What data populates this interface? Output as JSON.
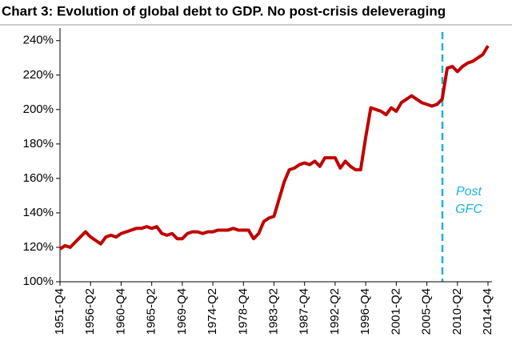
{
  "chart_data": {
    "type": "line",
    "title": "Chart 3: Evolution of global debt to GDP. No post-crisis deleveraging",
    "annotation": [
      "Post",
      "GFC"
    ],
    "categories": [
      "1951-Q4",
      null,
      null,
      null,
      null,
      null,
      "1956-Q2",
      null,
      null,
      null,
      null,
      null,
      "1960-Q4",
      null,
      null,
      null,
      null,
      null,
      "1965-Q2",
      null,
      null,
      null,
      null,
      null,
      "1969-Q4",
      null,
      null,
      null,
      null,
      null,
      "1974-Q2",
      null,
      null,
      null,
      null,
      null,
      "1978-Q4",
      null,
      null,
      null,
      null,
      null,
      "1983-Q2",
      null,
      null,
      null,
      null,
      null,
      "1987-Q4",
      null,
      null,
      null,
      null,
      null,
      "1992-Q2",
      null,
      null,
      null,
      null,
      null,
      "1996-Q4",
      null,
      null,
      null,
      null,
      null,
      "2001-Q2",
      null,
      null,
      null,
      null,
      null,
      "2005-Q4",
      null,
      null,
      null,
      null,
      null,
      "2010-Q2",
      null,
      null,
      null,
      null,
      null,
      "2014-Q4"
    ],
    "series": [
      {
        "color": "#c00000",
        "values": [
          119,
          121,
          120,
          123,
          126,
          129,
          126,
          124,
          122,
          126,
          127,
          126,
          128,
          129,
          130,
          131,
          131,
          132,
          131,
          132,
          128,
          127,
          128,
          125,
          125,
          128,
          129,
          129,
          128,
          129,
          129,
          130,
          130,
          130,
          131,
          130,
          130,
          130,
          125,
          128,
          135,
          137,
          138,
          148,
          158,
          165,
          166,
          168,
          169,
          168,
          170,
          167,
          172,
          172,
          172,
          166,
          170,
          167,
          165,
          165,
          184,
          201,
          200,
          199,
          197,
          201,
          199,
          204,
          206,
          208,
          206,
          204,
          203,
          202,
          203,
          206,
          224,
          225,
          222,
          225,
          227,
          228,
          230,
          232,
          237
        ]
      }
    ],
    "ylim": [
      100,
      245
    ],
    "yticks": [
      {
        "value": 100,
        "label": "100%"
      },
      {
        "value": 120,
        "label": "120%"
      },
      {
        "value": 140,
        "label": "140%"
      },
      {
        "value": 160,
        "label": "160%"
      },
      {
        "value": 180,
        "label": "180%"
      },
      {
        "value": 200,
        "label": "200%"
      },
      {
        "value": 220,
        "label": "220%"
      },
      {
        "value": 240,
        "label": "240%"
      }
    ]
  }
}
